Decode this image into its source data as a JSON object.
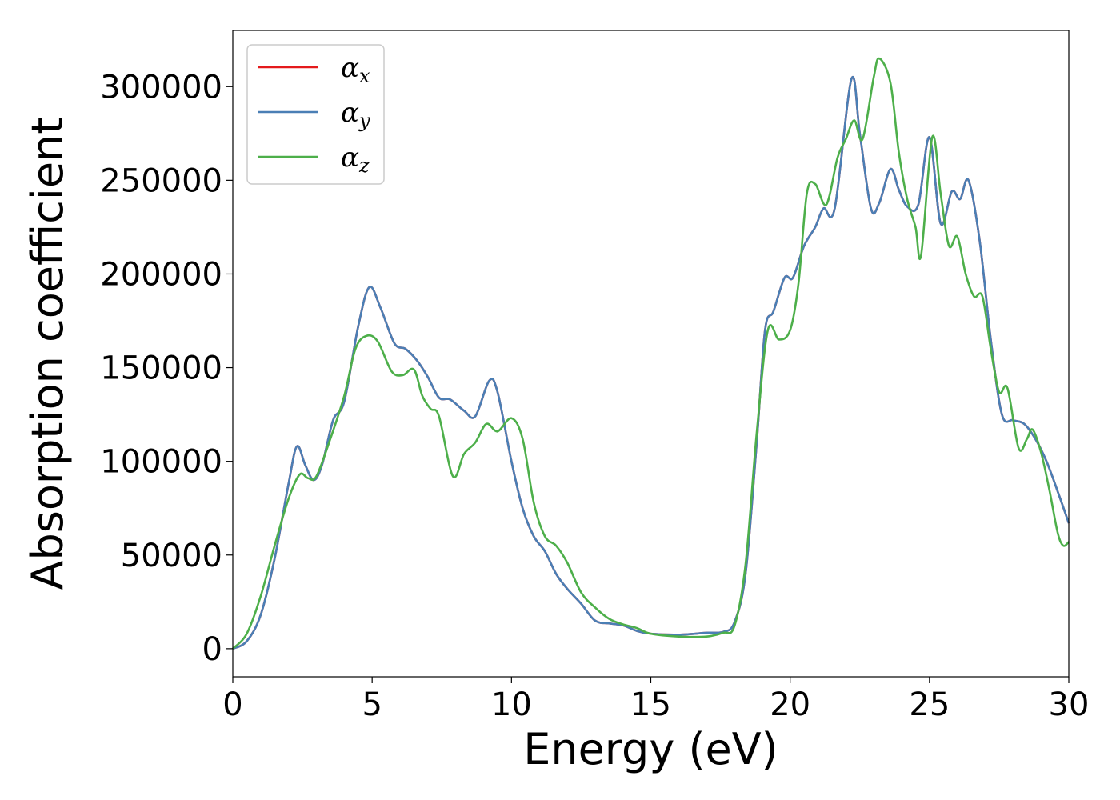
{
  "chart_data": {
    "type": "line",
    "xlabel": "Energy (eV)",
    "ylabel": "Absorption coefficient",
    "xlim": [
      0,
      30
    ],
    "ylim": [
      -15000,
      330000
    ],
    "xticks": [
      0,
      5,
      10,
      15,
      20,
      25,
      30
    ],
    "yticks": [
      0,
      50000,
      100000,
      150000,
      200000,
      250000,
      300000
    ],
    "grid": false,
    "legend": {
      "placement": "top-left"
    },
    "series": [
      {
        "name": "αx",
        "symbol": "α",
        "subscript": "x",
        "color": "#e41a1c",
        "points": [
          [
            0,
            0
          ],
          [
            0.5,
            4000
          ],
          [
            1.0,
            18000
          ],
          [
            1.5,
            48000
          ],
          [
            2.0,
            88000
          ],
          [
            2.3,
            108000
          ],
          [
            2.6,
            98000
          ],
          [
            2.9,
            90000
          ],
          [
            3.2,
            98000
          ],
          [
            3.6,
            122000
          ],
          [
            4.0,
            132000
          ],
          [
            4.5,
            172000
          ],
          [
            4.9,
            193000
          ],
          [
            5.3,
            182000
          ],
          [
            5.8,
            163000
          ],
          [
            6.2,
            160000
          ],
          [
            6.6,
            154000
          ],
          [
            7.0,
            145000
          ],
          [
            7.4,
            134000
          ],
          [
            7.8,
            133000
          ],
          [
            8.3,
            127000
          ],
          [
            8.7,
            124000
          ],
          [
            9.2,
            143000
          ],
          [
            9.5,
            137000
          ],
          [
            10.0,
            100000
          ],
          [
            10.4,
            75000
          ],
          [
            10.8,
            60000
          ],
          [
            11.2,
            52000
          ],
          [
            11.6,
            40000
          ],
          [
            12.0,
            32000
          ],
          [
            12.5,
            24000
          ],
          [
            13.0,
            15000
          ],
          [
            13.5,
            13500
          ],
          [
            14.0,
            12500
          ],
          [
            14.5,
            9500
          ],
          [
            15.0,
            8000
          ],
          [
            16.0,
            7500
          ],
          [
            17.0,
            8500
          ],
          [
            17.6,
            9000
          ],
          [
            18.0,
            14000
          ],
          [
            18.4,
            40000
          ],
          [
            18.8,
            110000
          ],
          [
            19.1,
            170000
          ],
          [
            19.4,
            180000
          ],
          [
            19.8,
            198000
          ],
          [
            20.1,
            198000
          ],
          [
            20.5,
            215000
          ],
          [
            20.9,
            225000
          ],
          [
            21.2,
            235000
          ],
          [
            21.6,
            235000
          ],
          [
            22.2,
            304000
          ],
          [
            22.5,
            275000
          ],
          [
            22.9,
            235000
          ],
          [
            23.2,
            238000
          ],
          [
            23.6,
            256000
          ],
          [
            23.9,
            245000
          ],
          [
            24.2,
            236000
          ],
          [
            24.6,
            237000
          ],
          [
            25.0,
            273000
          ],
          [
            25.4,
            227000
          ],
          [
            25.8,
            244000
          ],
          [
            26.1,
            240000
          ],
          [
            26.4,
            250000
          ],
          [
            26.8,
            218000
          ],
          [
            27.2,
            165000
          ],
          [
            27.6,
            125000
          ],
          [
            28.0,
            122000
          ],
          [
            28.4,
            120000
          ],
          [
            28.8,
            112000
          ],
          [
            29.2,
            100000
          ],
          [
            29.6,
            84000
          ],
          [
            30.0,
            67000
          ]
        ]
      },
      {
        "name": "αy",
        "symbol": "α",
        "subscript": "y",
        "color": "#4a7fb5",
        "points": [
          [
            0,
            0
          ],
          [
            0.5,
            4000
          ],
          [
            1.0,
            18000
          ],
          [
            1.5,
            48000
          ],
          [
            2.0,
            88000
          ],
          [
            2.3,
            108000
          ],
          [
            2.6,
            98000
          ],
          [
            2.9,
            90000
          ],
          [
            3.2,
            98000
          ],
          [
            3.6,
            122000
          ],
          [
            4.0,
            132000
          ],
          [
            4.5,
            172000
          ],
          [
            4.9,
            193000
          ],
          [
            5.3,
            182000
          ],
          [
            5.8,
            163000
          ],
          [
            6.2,
            160000
          ],
          [
            6.6,
            154000
          ],
          [
            7.0,
            145000
          ],
          [
            7.4,
            134000
          ],
          [
            7.8,
            133000
          ],
          [
            8.3,
            127000
          ],
          [
            8.7,
            124000
          ],
          [
            9.2,
            143000
          ],
          [
            9.5,
            137000
          ],
          [
            10.0,
            100000
          ],
          [
            10.4,
            75000
          ],
          [
            10.8,
            60000
          ],
          [
            11.2,
            52000
          ],
          [
            11.6,
            40000
          ],
          [
            12.0,
            32000
          ],
          [
            12.5,
            24000
          ],
          [
            13.0,
            15000
          ],
          [
            13.5,
            13500
          ],
          [
            14.0,
            12500
          ],
          [
            14.5,
            9500
          ],
          [
            15.0,
            8000
          ],
          [
            16.0,
            7500
          ],
          [
            17.0,
            8500
          ],
          [
            17.6,
            9000
          ],
          [
            18.0,
            14000
          ],
          [
            18.4,
            40000
          ],
          [
            18.8,
            110000
          ],
          [
            19.1,
            170000
          ],
          [
            19.4,
            180000
          ],
          [
            19.8,
            198000
          ],
          [
            20.1,
            198000
          ],
          [
            20.5,
            215000
          ],
          [
            20.9,
            225000
          ],
          [
            21.2,
            235000
          ],
          [
            21.6,
            235000
          ],
          [
            22.2,
            304000
          ],
          [
            22.5,
            275000
          ],
          [
            22.9,
            235000
          ],
          [
            23.2,
            238000
          ],
          [
            23.6,
            256000
          ],
          [
            23.9,
            245000
          ],
          [
            24.2,
            236000
          ],
          [
            24.6,
            237000
          ],
          [
            25.0,
            273000
          ],
          [
            25.4,
            227000
          ],
          [
            25.8,
            244000
          ],
          [
            26.1,
            240000
          ],
          [
            26.4,
            250000
          ],
          [
            26.8,
            218000
          ],
          [
            27.2,
            165000
          ],
          [
            27.6,
            125000
          ],
          [
            28.0,
            122000
          ],
          [
            28.4,
            120000
          ],
          [
            28.8,
            112000
          ],
          [
            29.2,
            100000
          ],
          [
            29.6,
            84000
          ],
          [
            30.0,
            67000
          ]
        ]
      },
      {
        "name": "αz",
        "symbol": "α",
        "subscript": "z",
        "color": "#4daf4a",
        "points": [
          [
            0,
            0
          ],
          [
            0.5,
            8000
          ],
          [
            1.0,
            28000
          ],
          [
            1.5,
            55000
          ],
          [
            2.0,
            80000
          ],
          [
            2.4,
            93000
          ],
          [
            2.7,
            91000
          ],
          [
            3.0,
            92000
          ],
          [
            3.5,
            112000
          ],
          [
            4.0,
            135000
          ],
          [
            4.4,
            160000
          ],
          [
            4.8,
            167000
          ],
          [
            5.2,
            164000
          ],
          [
            5.7,
            148000
          ],
          [
            6.1,
            146000
          ],
          [
            6.5,
            149000
          ],
          [
            6.8,
            135000
          ],
          [
            7.1,
            128000
          ],
          [
            7.4,
            124000
          ],
          [
            7.9,
            92000
          ],
          [
            8.3,
            104000
          ],
          [
            8.7,
            110000
          ],
          [
            9.1,
            120000
          ],
          [
            9.5,
            116000
          ],
          [
            10.0,
            123000
          ],
          [
            10.4,
            112000
          ],
          [
            10.8,
            78000
          ],
          [
            11.2,
            60000
          ],
          [
            11.6,
            55000
          ],
          [
            12.0,
            46000
          ],
          [
            12.5,
            30000
          ],
          [
            13.0,
            22000
          ],
          [
            13.5,
            16000
          ],
          [
            14.0,
            13000
          ],
          [
            14.5,
            11000
          ],
          [
            15.0,
            8000
          ],
          [
            16.0,
            6500
          ],
          [
            17.0,
            6500
          ],
          [
            17.6,
            8500
          ],
          [
            18.0,
            12000
          ],
          [
            18.4,
            45000
          ],
          [
            18.8,
            115000
          ],
          [
            19.2,
            170000
          ],
          [
            19.6,
            165000
          ],
          [
            20.0,
            170000
          ],
          [
            20.3,
            195000
          ],
          [
            20.6,
            243000
          ],
          [
            20.9,
            248000
          ],
          [
            21.3,
            237000
          ],
          [
            21.7,
            262000
          ],
          [
            22.0,
            272000
          ],
          [
            22.3,
            282000
          ],
          [
            22.6,
            272000
          ],
          [
            23.0,
            305000
          ],
          [
            23.2,
            315000
          ],
          [
            23.6,
            302000
          ],
          [
            23.9,
            265000
          ],
          [
            24.2,
            240000
          ],
          [
            24.5,
            225000
          ],
          [
            24.7,
            210000
          ],
          [
            25.1,
            273000
          ],
          [
            25.4,
            243000
          ],
          [
            25.7,
            215000
          ],
          [
            26.0,
            220000
          ],
          [
            26.3,
            200000
          ],
          [
            26.6,
            188000
          ],
          [
            26.9,
            188000
          ],
          [
            27.2,
            160000
          ],
          [
            27.5,
            137000
          ],
          [
            27.8,
            139000
          ],
          [
            28.2,
            107000
          ],
          [
            28.5,
            112000
          ],
          [
            28.7,
            117000
          ],
          [
            29.0,
            105000
          ],
          [
            29.3,
            85000
          ],
          [
            29.6,
            62000
          ],
          [
            29.8,
            55000
          ],
          [
            30.0,
            57000
          ]
        ]
      }
    ]
  }
}
